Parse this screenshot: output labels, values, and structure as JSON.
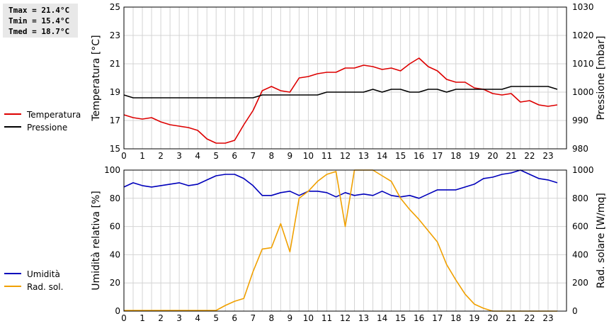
{
  "stats": {
    "tmax": "Tmax = 21.4°C",
    "tmin": "Tmin = 15.4°C",
    "tmed": "Tmed = 18.7°C"
  },
  "chart_data": [
    {
      "type": "line",
      "xlabel": "",
      "xlim": [
        0,
        24
      ],
      "x_ticks": [
        "0",
        "1",
        "2",
        "3",
        "4",
        "5",
        "6",
        "7",
        "8",
        "9",
        "10",
        "11",
        "12",
        "13",
        "14",
        "15",
        "16",
        "17",
        "18",
        "19",
        "20",
        "21",
        "22",
        "23"
      ],
      "grid": true,
      "legend_position": "left",
      "y_left": {
        "label": "Temperatura [°C]",
        "lim": [
          15,
          25
        ],
        "ticks": [
          "15",
          "17",
          "19",
          "21",
          "23",
          "25"
        ]
      },
      "y_right": {
        "label": "Pressione [mbar]",
        "lim": [
          980,
          1030
        ],
        "ticks": [
          "980",
          "990",
          "1000",
          "1010",
          "1020",
          "1030"
        ]
      },
      "series": [
        {
          "name": "Temperatura",
          "axis": "left",
          "color": "#dd0000",
          "x": [
            0,
            0.5,
            1,
            1.5,
            2,
            2.5,
            3,
            3.5,
            4,
            4.5,
            5,
            5.5,
            6,
            6.5,
            7,
            7.5,
            8,
            8.5,
            9,
            9.5,
            10,
            10.5,
            11,
            11.5,
            12,
            12.5,
            13,
            13.5,
            14,
            14.5,
            15,
            15.5,
            16,
            16.5,
            17,
            17.5,
            18,
            18.5,
            19,
            19.5,
            20,
            20.5,
            21,
            21.5,
            22,
            22.5,
            23,
            23.5
          ],
          "y": [
            17.4,
            17.2,
            17.1,
            17.2,
            16.9,
            16.7,
            16.6,
            16.5,
            16.3,
            15.7,
            15.4,
            15.4,
            15.6,
            16.7,
            17.7,
            19.1,
            19.4,
            19.1,
            19.0,
            20.0,
            20.1,
            20.3,
            20.4,
            20.4,
            20.7,
            20.7,
            20.9,
            20.8,
            20.6,
            20.7,
            20.5,
            21.0,
            21.4,
            20.8,
            20.5,
            19.9,
            19.7,
            19.7,
            19.3,
            19.2,
            18.9,
            18.8,
            18.9,
            18.3,
            18.4,
            18.1,
            18.0,
            18.1
          ]
        },
        {
          "name": "Pressione",
          "axis": "right",
          "color": "#000000",
          "x": [
            0,
            0.5,
            1,
            1.5,
            2,
            2.5,
            3,
            3.5,
            4,
            4.5,
            5,
            5.5,
            6,
            6.5,
            7,
            7.5,
            8,
            8.5,
            9,
            9.5,
            10,
            10.5,
            11,
            11.5,
            12,
            12.5,
            13,
            13.5,
            14,
            14.5,
            15,
            15.5,
            16,
            16.5,
            17,
            17.5,
            18,
            18.5,
            19,
            19.5,
            20,
            20.5,
            21,
            21.5,
            22,
            22.5,
            23,
            23.5
          ],
          "y": [
            999,
            998,
            998,
            998,
            998,
            998,
            998,
            998,
            998,
            998,
            998,
            998,
            998,
            998,
            998,
            999,
            999,
            999,
            999,
            999,
            999,
            999,
            1000,
            1000,
            1000,
            1000,
            1000,
            1001,
            1000,
            1001,
            1001,
            1000,
            1000,
            1001,
            1001,
            1000,
            1001,
            1001,
            1001,
            1001,
            1001,
            1001,
            1002,
            1002,
            1002,
            1002,
            1002,
            1001
          ]
        }
      ]
    },
    {
      "type": "line",
      "xlabel": "",
      "xlim": [
        0,
        24
      ],
      "x_ticks": [
        "0",
        "1",
        "2",
        "3",
        "4",
        "5",
        "6",
        "7",
        "8",
        "9",
        "10",
        "11",
        "12",
        "13",
        "14",
        "15",
        "16",
        "17",
        "18",
        "19",
        "20",
        "21",
        "22",
        "23"
      ],
      "grid": true,
      "legend_position": "left",
      "y_left": {
        "label": "Umidità relativa [%]",
        "lim": [
          0,
          100
        ],
        "ticks": [
          "0",
          "20",
          "40",
          "60",
          "80",
          "100"
        ]
      },
      "y_right": {
        "label": "Rad. solare [W/mq]",
        "lim": [
          0,
          1000
        ],
        "ticks": [
          "0",
          "200",
          "400",
          "600",
          "800",
          "1000"
        ]
      },
      "series": [
        {
          "name": "Umidità",
          "axis": "left",
          "color": "#0000bb",
          "x": [
            0,
            0.5,
            1,
            1.5,
            2,
            2.5,
            3,
            3.5,
            4,
            4.5,
            5,
            5.5,
            6,
            6.5,
            7,
            7.5,
            8,
            8.5,
            9,
            9.5,
            10,
            10.5,
            11,
            11.5,
            12,
            12.5,
            13,
            13.5,
            14,
            14.5,
            15,
            15.5,
            16,
            16.5,
            17,
            17.5,
            18,
            18.5,
            19,
            19.5,
            20,
            20.5,
            21,
            21.5,
            22,
            22.5,
            23,
            23.5
          ],
          "y": [
            88,
            91,
            89,
            88,
            89,
            90,
            91,
            89,
            90,
            93,
            96,
            97,
            97,
            94,
            89,
            82,
            82,
            84,
            85,
            82,
            85,
            85,
            84,
            81,
            84,
            82,
            83,
            82,
            85,
            82,
            81,
            82,
            80,
            83,
            86,
            86,
            86,
            88,
            90,
            94,
            95,
            97,
            98,
            100,
            97,
            94,
            93,
            91
          ]
        },
        {
          "name": "Rad. sol.",
          "axis": "right",
          "color": "#f0a000",
          "x": [
            0,
            0.5,
            1,
            1.5,
            2,
            2.5,
            3,
            3.5,
            4,
            4.5,
            5,
            5.5,
            6,
            6.5,
            7,
            7.5,
            8,
            8.5,
            9,
            9.5,
            10,
            10.5,
            11,
            11.5,
            12,
            12.5,
            13,
            13.5,
            14,
            14.5,
            15,
            15.5,
            16,
            16.5,
            17,
            17.5,
            18,
            18.5,
            19,
            19.5,
            20,
            20.5,
            21,
            21.5,
            22,
            22.5,
            23,
            23.5
          ],
          "y": [
            5,
            5,
            5,
            5,
            5,
            5,
            5,
            5,
            5,
            5,
            5,
            40,
            70,
            90,
            280,
            440,
            450,
            620,
            420,
            800,
            850,
            920,
            970,
            990,
            600,
            1000,
            1000,
            1000,
            960,
            920,
            800,
            720,
            650,
            570,
            490,
            330,
            220,
            120,
            50,
            20,
            0,
            0,
            0,
            0,
            0,
            0,
            0,
            0
          ]
        }
      ]
    }
  ]
}
